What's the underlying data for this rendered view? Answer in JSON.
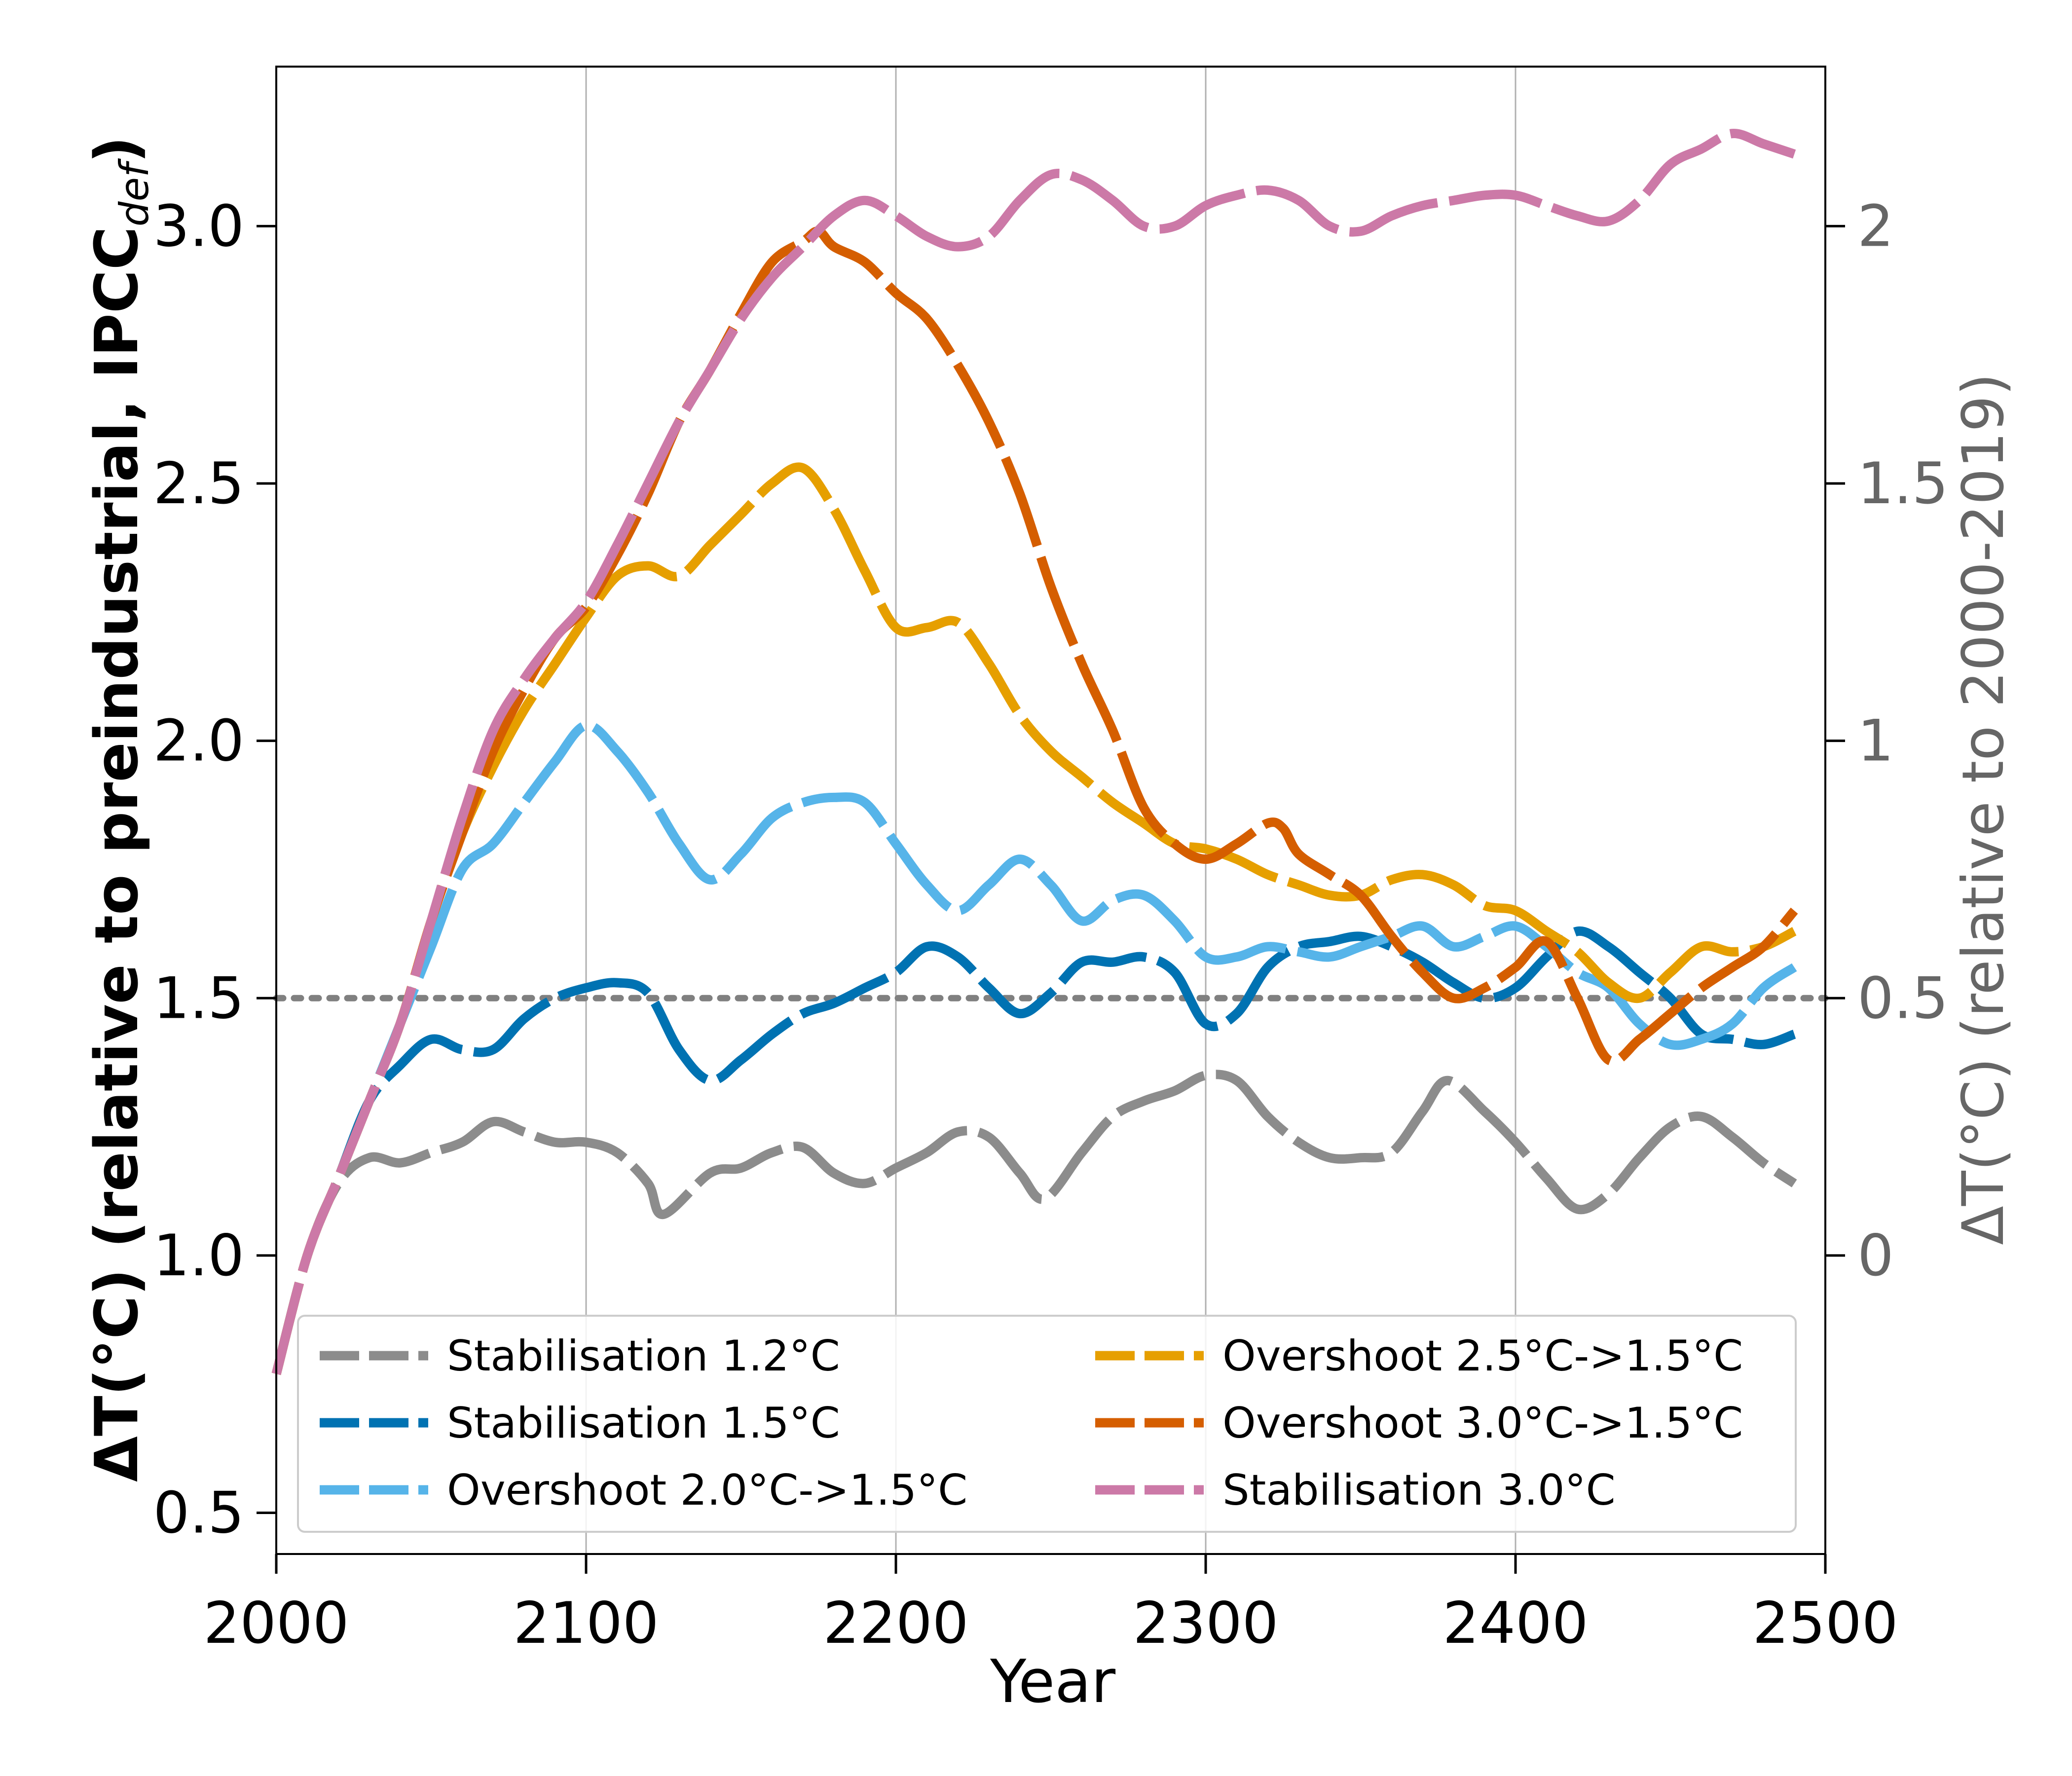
{
  "chart_data": {
    "type": "line",
    "xlabel": "Year",
    "ylabel_left": "ΔT(°C) (relative to preindustrial, IPCC",
    "ylabel_left_sub": "def",
    "ylabel_left_close": ")",
    "ylabel_right": "ΔT(°C) (relative to 2000-2019)",
    "xlim": [
      2000,
      2500
    ],
    "ylim": [
      0.42,
      3.31
    ],
    "right_axis_offset": 1.0,
    "x_ticks": [
      "2000",
      "2100",
      "2200",
      "2300",
      "2400",
      "2500"
    ],
    "x_tick_values": [
      2000,
      2100,
      2200,
      2300,
      2400,
      2500
    ],
    "y_left_ticks": [
      "0.5",
      "1.0",
      "1.5",
      "2.0",
      "2.5",
      "3.0"
    ],
    "y_left_tick_values": [
      0.5,
      1.0,
      1.5,
      2.0,
      2.5,
      3.0
    ],
    "y_right_ticks": [
      "0",
      "0.5",
      "1",
      "1.5",
      "2"
    ],
    "y_right_tick_values": [
      0,
      0.5,
      1,
      1.5,
      2
    ],
    "grid": "vertical",
    "reference_line": {
      "y": 1.5,
      "style": "dotted",
      "color": "#808080"
    },
    "legend_position": "lower-center",
    "series": [
      {
        "name": "Stabilisation 1.2°C",
        "color": "#8c8c8c",
        "x": [
          2000,
          2010,
          2020,
          2030,
          2040,
          2050,
          2060,
          2070,
          2080,
          2090,
          2100,
          2110,
          2120,
          2125,
          2140,
          2150,
          2160,
          2170,
          2180,
          2190,
          2200,
          2210,
          2220,
          2230,
          2240,
          2248,
          2260,
          2270,
          2280,
          2290,
          2300,
          2310,
          2320,
          2330,
          2340,
          2350,
          2360,
          2370,
          2378,
          2390,
          2400,
          2410,
          2420,
          2430,
          2440,
          2450,
          2460,
          2470,
          2480,
          2490
        ],
        "values": [
          0.77,
          1.0,
          1.14,
          1.19,
          1.18,
          1.2,
          1.22,
          1.26,
          1.24,
          1.22,
          1.22,
          1.2,
          1.14,
          1.08,
          1.16,
          1.17,
          1.2,
          1.21,
          1.16,
          1.14,
          1.17,
          1.2,
          1.24,
          1.23,
          1.16,
          1.11,
          1.2,
          1.27,
          1.3,
          1.32,
          1.35,
          1.34,
          1.27,
          1.22,
          1.19,
          1.19,
          1.2,
          1.28,
          1.34,
          1.28,
          1.22,
          1.15,
          1.09,
          1.12,
          1.19,
          1.25,
          1.27,
          1.23,
          1.18,
          1.14
        ]
      },
      {
        "name": "Stabilisation 1.5°C",
        "color": "#0072b2",
        "x": [
          2000,
          2010,
          2020,
          2030,
          2040,
          2050,
          2060,
          2070,
          2080,
          2090,
          2100,
          2110,
          2120,
          2130,
          2140,
          2150,
          2160,
          2170,
          2180,
          2190,
          2200,
          2210,
          2220,
          2230,
          2240,
          2250,
          2260,
          2270,
          2280,
          2290,
          2300,
          2310,
          2320,
          2330,
          2340,
          2350,
          2360,
          2370,
          2380,
          2390,
          2400,
          2410,
          2420,
          2430,
          2440,
          2450,
          2460,
          2470,
          2480,
          2490
        ],
        "values": [
          0.77,
          1.0,
          1.15,
          1.3,
          1.37,
          1.42,
          1.4,
          1.4,
          1.46,
          1.5,
          1.52,
          1.53,
          1.51,
          1.4,
          1.34,
          1.38,
          1.43,
          1.47,
          1.49,
          1.52,
          1.55,
          1.6,
          1.58,
          1.52,
          1.47,
          1.51,
          1.57,
          1.57,
          1.58,
          1.55,
          1.45,
          1.47,
          1.56,
          1.6,
          1.61,
          1.62,
          1.6,
          1.57,
          1.53,
          1.5,
          1.52,
          1.58,
          1.63,
          1.6,
          1.55,
          1.5,
          1.43,
          1.42,
          1.41,
          1.43
        ]
      },
      {
        "name": "Overshoot 2.0°C->1.5°C",
        "color": "#56b4e9",
        "x": [
          2000,
          2010,
          2020,
          2030,
          2040,
          2050,
          2060,
          2070,
          2080,
          2090,
          2100,
          2110,
          2120,
          2130,
          2140,
          2150,
          2160,
          2170,
          2180,
          2190,
          2200,
          2210,
          2220,
          2230,
          2240,
          2250,
          2260,
          2270,
          2280,
          2290,
          2300,
          2310,
          2320,
          2330,
          2340,
          2350,
          2360,
          2370,
          2380,
          2390,
          2400,
          2410,
          2420,
          2430,
          2440,
          2450,
          2460,
          2470,
          2480,
          2490
        ],
        "values": [
          0.77,
          1.0,
          1.15,
          1.3,
          1.45,
          1.6,
          1.75,
          1.8,
          1.88,
          1.96,
          2.03,
          1.98,
          1.9,
          1.8,
          1.73,
          1.78,
          1.85,
          1.88,
          1.89,
          1.88,
          1.8,
          1.72,
          1.67,
          1.72,
          1.77,
          1.72,
          1.65,
          1.69,
          1.7,
          1.65,
          1.58,
          1.58,
          1.6,
          1.59,
          1.58,
          1.6,
          1.62,
          1.64,
          1.6,
          1.62,
          1.64,
          1.6,
          1.55,
          1.52,
          1.45,
          1.41,
          1.42,
          1.45,
          1.52,
          1.56
        ]
      },
      {
        "name": "Overshoot 2.5°C->1.5°C",
        "color": "#e69f00",
        "x": [
          2000,
          2010,
          2020,
          2030,
          2040,
          2050,
          2060,
          2070,
          2080,
          2090,
          2100,
          2110,
          2120,
          2130,
          2140,
          2150,
          2160,
          2170,
          2180,
          2190,
          2200,
          2210,
          2220,
          2230,
          2240,
          2250,
          2260,
          2270,
          2280,
          2290,
          2300,
          2310,
          2320,
          2330,
          2340,
          2350,
          2360,
          2370,
          2380,
          2390,
          2400,
          2410,
          2420,
          2430,
          2440,
          2450,
          2460,
          2470,
          2480,
          2490
        ],
        "values": [
          0.77,
          1.0,
          1.15,
          1.3,
          1.45,
          1.65,
          1.82,
          1.95,
          2.06,
          2.15,
          2.24,
          2.32,
          2.34,
          2.32,
          2.38,
          2.44,
          2.5,
          2.53,
          2.45,
          2.33,
          2.22,
          2.22,
          2.23,
          2.15,
          2.05,
          1.98,
          1.93,
          1.88,
          1.84,
          1.8,
          1.79,
          1.77,
          1.74,
          1.72,
          1.7,
          1.7,
          1.73,
          1.74,
          1.72,
          1.68,
          1.67,
          1.63,
          1.59,
          1.53,
          1.5,
          1.55,
          1.6,
          1.59,
          1.6,
          1.63
        ]
      },
      {
        "name": "Overshoot 3.0°C->1.5°C",
        "color": "#d55e00",
        "x": [
          2000,
          2010,
          2020,
          2030,
          2040,
          2050,
          2060,
          2070,
          2080,
          2090,
          2100,
          2110,
          2120,
          2130,
          2140,
          2150,
          2160,
          2170,
          2175,
          2180,
          2190,
          2200,
          2210,
          2220,
          2230,
          2240,
          2250,
          2260,
          2270,
          2280,
          2290,
          2300,
          2310,
          2320,
          2325,
          2330,
          2340,
          2350,
          2360,
          2370,
          2380,
          2390,
          2400,
          2410,
          2420,
          2430,
          2440,
          2450,
          2460,
          2470,
          2480,
          2490
        ],
        "values": [
          0.77,
          1.0,
          1.15,
          1.3,
          1.45,
          1.65,
          1.82,
          1.98,
          2.1,
          2.2,
          2.26,
          2.36,
          2.48,
          2.62,
          2.72,
          2.83,
          2.93,
          2.97,
          2.99,
          2.96,
          2.93,
          2.87,
          2.82,
          2.73,
          2.62,
          2.48,
          2.3,
          2.15,
          2.02,
          1.87,
          1.8,
          1.77,
          1.8,
          1.84,
          1.83,
          1.78,
          1.74,
          1.7,
          1.62,
          1.55,
          1.5,
          1.52,
          1.56,
          1.61,
          1.5,
          1.38,
          1.42,
          1.47,
          1.52,
          1.56,
          1.6,
          1.67
        ]
      },
      {
        "name": "Stabilisation 3.0°C",
        "color": "#cc79a7",
        "x": [
          2000,
          2010,
          2020,
          2030,
          2040,
          2050,
          2060,
          2070,
          2080,
          2090,
          2100,
          2110,
          2120,
          2130,
          2140,
          2150,
          2160,
          2170,
          2180,
          2190,
          2200,
          2210,
          2220,
          2230,
          2240,
          2250,
          2260,
          2270,
          2280,
          2290,
          2300,
          2310,
          2320,
          2330,
          2340,
          2350,
          2360,
          2370,
          2380,
          2390,
          2400,
          2410,
          2420,
          2430,
          2440,
          2450,
          2460,
          2470,
          2480,
          2490
        ],
        "values": [
          0.77,
          1.0,
          1.15,
          1.3,
          1.45,
          1.65,
          1.85,
          2.02,
          2.12,
          2.2,
          2.27,
          2.38,
          2.5,
          2.62,
          2.72,
          2.82,
          2.9,
          2.96,
          3.02,
          3.05,
          3.02,
          2.98,
          2.96,
          2.98,
          3.05,
          3.1,
          3.09,
          3.05,
          3.0,
          3.0,
          3.04,
          3.06,
          3.07,
          3.05,
          3.0,
          2.99,
          3.02,
          3.04,
          3.05,
          3.06,
          3.06,
          3.04,
          3.02,
          3.01,
          3.05,
          3.12,
          3.15,
          3.18,
          3.16,
          3.14
        ]
      }
    ]
  }
}
